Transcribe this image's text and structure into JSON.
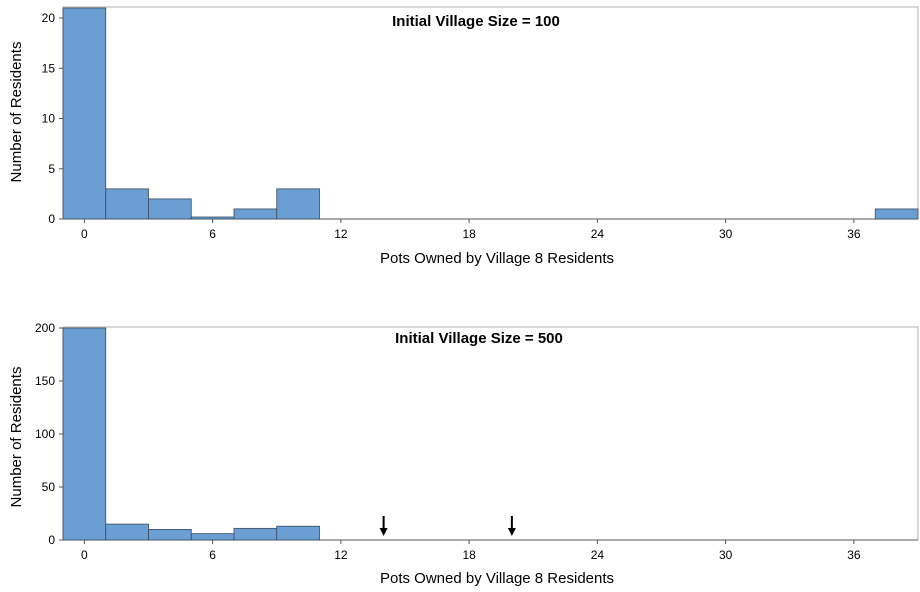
{
  "colors": {
    "bar": "#6b9fd4",
    "axis": "#555555",
    "frame": "#b0b0b0"
  },
  "chart_data": [
    {
      "type": "bar",
      "title": "Initial Village Size = 100",
      "xlabel": "Pots Owned by Village 8 Residents",
      "ylabel": "Number of Residents",
      "xlim": [
        -1,
        39
      ],
      "ylim": [
        0,
        21
      ],
      "xticks": [
        0,
        6,
        12,
        18,
        24,
        30,
        36
      ],
      "yticks": [
        0,
        5,
        10,
        15,
        20
      ],
      "bin_width": 2,
      "bins": [
        {
          "x": 0,
          "value": 21
        },
        {
          "x": 2,
          "value": 3
        },
        {
          "x": 4,
          "value": 2
        },
        {
          "x": 6,
          "value": 0
        },
        {
          "x": 8,
          "value": 1
        },
        {
          "x": 10,
          "value": 3
        },
        {
          "x": 38,
          "value": 1
        }
      ]
    },
    {
      "type": "bar",
      "title": "Initial Village Size = 500",
      "xlabel": "Pots Owned by Village 8 Residents",
      "ylabel": "Number of Residents",
      "xlim": [
        -1,
        39
      ],
      "ylim": [
        0,
        200
      ],
      "xticks": [
        0,
        6,
        12,
        18,
        24,
        30,
        36
      ],
      "yticks": [
        0,
        50,
        100,
        150,
        200
      ],
      "bin_width": 2,
      "bins": [
        {
          "x": 0,
          "value": 200
        },
        {
          "x": 2,
          "value": 15
        },
        {
          "x": 4,
          "value": 10
        },
        {
          "x": 6,
          "value": 6
        },
        {
          "x": 8,
          "value": 11
        },
        {
          "x": 10,
          "value": 13
        }
      ],
      "arrows_at": [
        14,
        20
      ]
    }
  ]
}
